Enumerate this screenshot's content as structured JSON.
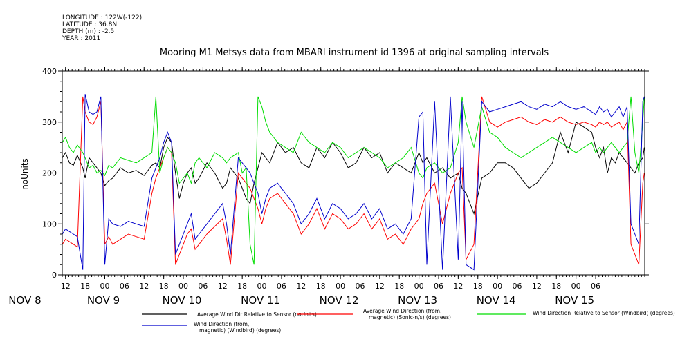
{
  "metadata": {
    "longitude": "LONGITUDE : 122W(-122)",
    "latitude": "LATITUDE : 36.8N",
    "depth": "DEPTH (m) : -2.5",
    "year": "YEAR : 2011"
  },
  "chart_data": {
    "type": "line",
    "title": "Mooring M1 Metsys data from MBARI instrument id 1396 at original sampling intervals",
    "ylabel": "noUnits",
    "xlabel": "",
    "ylim": [
      0,
      400
    ],
    "yticks": [
      0,
      100,
      200,
      300,
      400
    ],
    "xlim": [
      8.4583,
      15.875
    ],
    "hour_ticks": [
      "12",
      "18",
      "00",
      "06",
      "12",
      "18",
      "00",
      "06",
      "12",
      "18",
      "00",
      "06",
      "12",
      "18",
      "00",
      "06",
      "12",
      "18",
      "00",
      "06",
      "12",
      "18",
      "00",
      "06",
      "12",
      "18",
      "00",
      "06"
    ],
    "day_labels": [
      {
        "label": "NOV  8",
        "day": 8
      },
      {
        "label": "NOV  9",
        "day": 9
      },
      {
        "label": "NOV 10",
        "day": 10
      },
      {
        "label": "NOV 11",
        "day": 11
      },
      {
        "label": "NOV 12",
        "day": 12
      },
      {
        "label": "NOV 13",
        "day": 13
      },
      {
        "label": "NOV 14",
        "day": 14
      },
      {
        "label": "NOV 15",
        "day": 15
      }
    ],
    "grid": false,
    "legend_position": "bottom",
    "series": [
      {
        "name": "Average Wind Dir Relative to Sensor (noUnits)",
        "color": "#000000",
        "x": [
          8.46,
          8.5,
          8.55,
          8.6,
          8.65,
          8.72,
          8.75,
          8.8,
          8.85,
          8.9,
          8.95,
          9.0,
          9.05,
          9.1,
          9.2,
          9.3,
          9.4,
          9.5,
          9.6,
          9.65,
          9.7,
          9.75,
          9.8,
          9.85,
          9.9,
          9.95,
          10.0,
          10.05,
          10.1,
          10.15,
          10.2,
          10.3,
          10.4,
          10.5,
          10.55,
          10.6,
          10.7,
          10.75,
          10.8,
          10.85,
          10.9,
          10.95,
          11.0,
          11.05,
          11.1,
          11.2,
          11.3,
          11.4,
          11.5,
          11.6,
          11.7,
          11.8,
          11.9,
          12.0,
          12.1,
          12.2,
          12.3,
          12.4,
          12.5,
          12.6,
          12.7,
          12.8,
          12.9,
          13.0,
          13.05,
          13.1,
          13.2,
          13.3,
          13.4,
          13.5,
          13.55,
          13.6,
          13.7,
          13.8,
          13.9,
          14.0,
          14.1,
          14.2,
          14.3,
          14.4,
          14.5,
          14.6,
          14.7,
          14.8,
          14.9,
          15.0,
          15.1,
          15.2,
          15.25,
          15.3,
          15.35,
          15.4,
          15.45,
          15.5,
          15.55,
          15.6,
          15.65,
          15.7,
          15.75,
          15.8,
          15.85,
          15.87
        ],
        "y": [
          230,
          240,
          220,
          215,
          235,
          210,
          190,
          230,
          220,
          210,
          200,
          175,
          185,
          190,
          210,
          200,
          205,
          195,
          215,
          220,
          210,
          250,
          270,
          260,
          200,
          150,
          180,
          200,
          210,
          180,
          190,
          220,
          200,
          170,
          180,
          210,
          190,
          170,
          150,
          140,
          180,
          210,
          240,
          230,
          220,
          260,
          240,
          250,
          220,
          210,
          250,
          230,
          260,
          240,
          210,
          220,
          250,
          230,
          240,
          200,
          220,
          210,
          200,
          240,
          220,
          230,
          200,
          210,
          190,
          200,
          170,
          160,
          120,
          190,
          200,
          220,
          220,
          210,
          190,
          170,
          180,
          200,
          220,
          280,
          240,
          300,
          290,
          280,
          250,
          230,
          250,
          200,
          230,
          220,
          240,
          230,
          220,
          210,
          200,
          220,
          230,
          250
        ]
      },
      {
        "name": "Average Wind Direction (from, magnetic) (Sonic-n/s) (degrees)",
        "color": "#ff0000",
        "x": [
          8.46,
          8.5,
          8.55,
          8.6,
          8.65,
          8.72,
          8.75,
          8.8,
          8.85,
          8.9,
          8.95,
          9.0,
          9.05,
          9.1,
          9.2,
          9.3,
          9.4,
          9.5,
          9.6,
          9.65,
          9.7,
          9.75,
          9.8,
          9.85,
          9.9,
          9.95,
          10.0,
          10.05,
          10.1,
          10.15,
          10.2,
          10.3,
          10.4,
          10.5,
          10.55,
          10.6,
          10.7,
          10.75,
          10.8,
          10.85,
          10.9,
          10.95,
          11.0,
          11.05,
          11.1,
          11.2,
          11.3,
          11.4,
          11.5,
          11.6,
          11.7,
          11.8,
          11.9,
          12.0,
          12.1,
          12.2,
          12.3,
          12.4,
          12.5,
          12.6,
          12.7,
          12.8,
          12.9,
          13.0,
          13.05,
          13.1,
          13.2,
          13.3,
          13.4,
          13.5,
          13.55,
          13.6,
          13.7,
          13.8,
          13.9,
          14.0,
          14.1,
          14.2,
          14.3,
          14.4,
          14.5,
          14.6,
          14.7,
          14.8,
          14.9,
          15.0,
          15.1,
          15.2,
          15.25,
          15.3,
          15.35,
          15.4,
          15.45,
          15.5,
          15.55,
          15.6,
          15.65,
          15.7,
          15.75,
          15.8,
          15.85,
          15.87
        ],
        "y": [
          60,
          70,
          65,
          60,
          55,
          350,
          320,
          300,
          295,
          310,
          340,
          60,
          75,
          60,
          70,
          80,
          75,
          70,
          160,
          190,
          210,
          230,
          250,
          240,
          20,
          40,
          60,
          80,
          90,
          50,
          60,
          80,
          95,
          110,
          70,
          20,
          200,
          190,
          180,
          170,
          150,
          130,
          100,
          130,
          150,
          160,
          140,
          120,
          80,
          100,
          130,
          90,
          120,
          110,
          90,
          100,
          120,
          90,
          110,
          70,
          80,
          60,
          90,
          110,
          140,
          160,
          180,
          100,
          160,
          200,
          210,
          30,
          60,
          350,
          300,
          290,
          300,
          305,
          310,
          300,
          295,
          305,
          300,
          310,
          300,
          295,
          300,
          295,
          290,
          300,
          295,
          300,
          290,
          295,
          300,
          285,
          300,
          60,
          40,
          20,
          180,
          200
        ]
      },
      {
        "name": "Wind Direction Relative to Sensor (Windbird) (degrees)",
        "color": "#00dd00",
        "x": [
          8.46,
          8.5,
          8.55,
          8.6,
          8.65,
          8.72,
          8.75,
          8.8,
          8.85,
          8.9,
          8.95,
          9.0,
          9.05,
          9.1,
          9.2,
          9.3,
          9.4,
          9.5,
          9.6,
          9.65,
          9.7,
          9.75,
          9.8,
          9.85,
          9.9,
          9.95,
          10.0,
          10.05,
          10.1,
          10.15,
          10.2,
          10.3,
          10.4,
          10.5,
          10.55,
          10.6,
          10.7,
          10.75,
          10.8,
          10.85,
          10.9,
          10.95,
          11.0,
          11.05,
          11.1,
          11.2,
          11.3,
          11.4,
          11.5,
          11.6,
          11.7,
          11.8,
          11.9,
          12.0,
          12.1,
          12.2,
          12.3,
          12.4,
          12.5,
          12.6,
          12.7,
          12.8,
          12.9,
          13.0,
          13.05,
          13.1,
          13.2,
          13.3,
          13.4,
          13.5,
          13.55,
          13.6,
          13.7,
          13.8,
          13.9,
          14.0,
          14.1,
          14.2,
          14.3,
          14.4,
          14.5,
          14.6,
          14.7,
          14.8,
          14.9,
          15.0,
          15.1,
          15.2,
          15.25,
          15.3,
          15.35,
          15.4,
          15.45,
          15.5,
          15.55,
          15.6,
          15.65,
          15.7,
          15.75,
          15.8,
          15.85,
          15.87
        ],
        "y": [
          260,
          270,
          250,
          240,
          255,
          240,
          230,
          210,
          215,
          200,
          205,
          195,
          215,
          210,
          230,
          225,
          220,
          230,
          240,
          350,
          200,
          230,
          250,
          240,
          220,
          180,
          190,
          200,
          180,
          220,
          230,
          210,
          240,
          230,
          220,
          230,
          240,
          200,
          210,
          60,
          20,
          350,
          330,
          300,
          280,
          260,
          250,
          240,
          280,
          260,
          250,
          240,
          260,
          250,
          230,
          240,
          250,
          240,
          230,
          210,
          220,
          230,
          250,
          200,
          190,
          210,
          220,
          200,
          210,
          260,
          350,
          300,
          250,
          330,
          280,
          270,
          250,
          240,
          230,
          240,
          250,
          260,
          270,
          260,
          250,
          240,
          250,
          260,
          240,
          250,
          240,
          250,
          260,
          250,
          240,
          250,
          260,
          350,
          240,
          200,
          300,
          350
        ]
      },
      {
        "name": "Wind Direction (from, magnetic) (Windbird) (degrees)",
        "color": "#0000cc",
        "x": [
          8.46,
          8.5,
          8.55,
          8.6,
          8.65,
          8.72,
          8.75,
          8.8,
          8.85,
          8.9,
          8.95,
          9.0,
          9.05,
          9.1,
          9.2,
          9.3,
          9.4,
          9.5,
          9.6,
          9.65,
          9.7,
          9.75,
          9.8,
          9.85,
          9.9,
          9.95,
          10.0,
          10.05,
          10.1,
          10.15,
          10.2,
          10.3,
          10.4,
          10.5,
          10.55,
          10.6,
          10.7,
          10.75,
          10.8,
          10.85,
          10.9,
          10.95,
          11.0,
          11.05,
          11.1,
          11.2,
          11.3,
          11.4,
          11.5,
          11.6,
          11.7,
          11.8,
          11.9,
          12.0,
          12.1,
          12.2,
          12.3,
          12.4,
          12.5,
          12.6,
          12.7,
          12.8,
          12.9,
          13.0,
          13.05,
          13.1,
          13.2,
          13.3,
          13.4,
          13.5,
          13.55,
          13.6,
          13.7,
          13.8,
          13.9,
          14.0,
          14.1,
          14.2,
          14.3,
          14.4,
          14.5,
          14.6,
          14.7,
          14.8,
          14.9,
          15.0,
          15.1,
          15.2,
          15.25,
          15.3,
          15.35,
          15.4,
          15.45,
          15.5,
          15.55,
          15.6,
          15.65,
          15.7,
          15.75,
          15.8,
          15.85,
          15.87
        ],
        "y": [
          80,
          90,
          85,
          80,
          75,
          10,
          355,
          320,
          315,
          320,
          350,
          20,
          110,
          100,
          95,
          105,
          100,
          95,
          190,
          210,
          230,
          260,
          280,
          260,
          40,
          60,
          80,
          100,
          120,
          70,
          80,
          100,
          120,
          140,
          100,
          40,
          230,
          220,
          210,
          200,
          180,
          160,
          120,
          150,
          170,
          180,
          160,
          140,
          100,
          120,
          150,
          110,
          140,
          130,
          110,
          120,
          140,
          110,
          130,
          90,
          100,
          80,
          110,
          310,
          320,
          20,
          340,
          10,
          350,
          30,
          340,
          20,
          10,
          340,
          320,
          325,
          330,
          335,
          340,
          330,
          325,
          335,
          330,
          340,
          330,
          325,
          330,
          320,
          315,
          330,
          320,
          325,
          310,
          320,
          330,
          310,
          330,
          100,
          80,
          60,
          340,
          350
        ]
      }
    ],
    "legend": [
      {
        "label_lines": [
          "Average Wind Dir Relative to Sensor (noUnits)"
        ],
        "color": "#000000"
      },
      {
        "label_lines": [
          "Average Wind Direction (from,",
          "magnetic) (Sonic-n/s) (degrees)"
        ],
        "color": "#ff0000"
      },
      {
        "label_lines": [
          "Wind Direction Relative to Sensor (Windbird) (degrees)"
        ],
        "color": "#00dd00"
      },
      {
        "label_lines": [
          "Wind Direction (from,",
          "magnetic) (Windbird) (degrees)"
        ],
        "color": "#0000cc"
      }
    ]
  }
}
